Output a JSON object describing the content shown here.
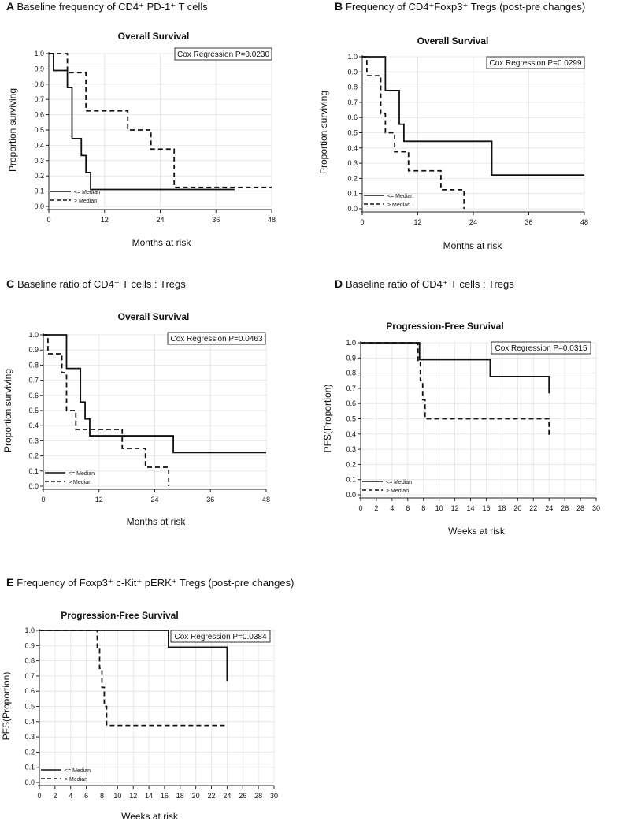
{
  "chart_data": [
    {
      "panel": "A",
      "heading": "Baseline frequency of CD4⁺ PD-1⁺ T cells",
      "type": "line",
      "title": "Overall Survival",
      "xlabel": "Months at risk",
      "ylabel": "Proportion surviving",
      "xlim": [
        0,
        48
      ],
      "ylim": [
        0,
        1
      ],
      "xticks": [
        "0",
        "12",
        "24",
        "36",
        "48"
      ],
      "yticks": [
        "0.0",
        "0.1",
        "0.2",
        "0.3",
        "0.4",
        "0.5",
        "0.6",
        "0.7",
        "0.8",
        "0.9",
        "1.0"
      ],
      "grid": true,
      "stat": "Cox Regression P=0.0230",
      "legend_position": "bottom-left",
      "series": [
        {
          "name": "<= Median",
          "style": "solid",
          "x": [
            0,
            1,
            4,
            5,
            6,
            7,
            8,
            9,
            10,
            40
          ],
          "y": [
            1.0,
            0.889,
            0.778,
            0.444,
            0.444,
            0.333,
            0.222,
            0.111,
            0.111,
            0.111
          ]
        },
        {
          "name": "> Median",
          "style": "dashed",
          "x": [
            0,
            4,
            8,
            17,
            22,
            27,
            48
          ],
          "y": [
            1.0,
            0.875,
            0.625,
            0.5,
            0.375,
            0.125,
            0.125
          ]
        }
      ]
    },
    {
      "panel": "B",
      "heading": "Frequency of CD4⁺Foxp3⁺ Tregs (post-pre changes)",
      "type": "line",
      "title": "Overall Survival",
      "xlabel": "Months at risk",
      "ylabel": "Proportion surviving",
      "xlim": [
        0,
        48
      ],
      "ylim": [
        0,
        1
      ],
      "xticks": [
        "0",
        "12",
        "24",
        "36",
        "48"
      ],
      "yticks": [
        "0.0",
        "0.1",
        "0.2",
        "0.3",
        "0.4",
        "0.5",
        "0.6",
        "0.7",
        "0.8",
        "0.9",
        "1.0"
      ],
      "grid": true,
      "stat": "Cox Regression P=0.0299",
      "legend_position": "bottom-left",
      "series": [
        {
          "name": "<= Median",
          "style": "solid",
          "x": [
            0,
            5,
            8,
            9,
            28,
            48
          ],
          "y": [
            1.0,
            0.778,
            0.556,
            0.444,
            0.222,
            0.222
          ]
        },
        {
          "name": "> Median",
          "style": "dashed",
          "x": [
            0,
            1,
            4,
            5,
            7,
            10,
            17,
            22
          ],
          "y": [
            1.0,
            0.875,
            0.625,
            0.5,
            0.375,
            0.25,
            0.125,
            0.0
          ]
        }
      ]
    },
    {
      "panel": "C",
      "heading": "Baseline ratio of CD4⁺ T cells : Tregs",
      "type": "line",
      "title": "Overall Survival",
      "xlabel": "Months at risk",
      "ylabel": "Proportion surviving",
      "xlim": [
        0,
        48
      ],
      "ylim": [
        0,
        1
      ],
      "xticks": [
        "0",
        "12",
        "24",
        "36",
        "48"
      ],
      "yticks": [
        "0.0",
        "0.1",
        "0.2",
        "0.3",
        "0.4",
        "0.5",
        "0.6",
        "0.7",
        "0.8",
        "0.9",
        "1.0"
      ],
      "grid": true,
      "stat": "Cox Regression P=0.0463",
      "legend_position": "bottom-left",
      "series": [
        {
          "name": "<= Median",
          "style": "solid",
          "x": [
            0,
            5,
            8,
            9,
            10,
            28,
            48
          ],
          "y": [
            1.0,
            0.778,
            0.556,
            0.444,
            0.333,
            0.222,
            0.222
          ]
        },
        {
          "name": "> Median",
          "style": "dashed",
          "x": [
            0,
            1,
            4,
            5,
            7,
            17,
            22,
            27
          ],
          "y": [
            1.0,
            0.875,
            0.75,
            0.5,
            0.375,
            0.25,
            0.125,
            0.0
          ]
        }
      ]
    },
    {
      "panel": "D",
      "heading": "Baseline ratio of CD4⁺ T cells : Tregs",
      "type": "line",
      "title": "Progression-Free Survival",
      "xlabel": "Weeks at risk",
      "ylabel": "PFS(Proportion)",
      "xlim": [
        0,
        30
      ],
      "ylim": [
        0,
        1
      ],
      "xticks": [
        "0",
        "2",
        "4",
        "6",
        "8",
        "10",
        "12",
        "14",
        "16",
        "18",
        "20",
        "22",
        "24",
        "26",
        "28",
        "30"
      ],
      "yticks": [
        "0.0",
        "0.1",
        "0.2",
        "0.3",
        "0.4",
        "0.5",
        "0.6",
        "0.7",
        "0.8",
        "0.9",
        "1.0"
      ],
      "grid": true,
      "stat": "Cox Regression P=0.0315",
      "legend_position": "bottom-left",
      "series": [
        {
          "name": "<= Median",
          "style": "solid",
          "x": [
            0,
            7.5,
            16.5,
            24
          ],
          "y": [
            1.0,
            0.889,
            0.778,
            0.667
          ]
        },
        {
          "name": "> Median",
          "style": "dashed",
          "x": [
            0,
            7.3,
            7.6,
            7.9,
            8.2,
            24
          ],
          "y": [
            1.0,
            0.875,
            0.75,
            0.625,
            0.5,
            0.375
          ]
        }
      ]
    },
    {
      "panel": "E",
      "heading": "Frequency of Foxp3⁺ c-Kit⁺ pERK⁺ Tregs (post-pre changes)",
      "type": "line",
      "title": "Progression-Free Survival",
      "xlabel": "Weeks at risk",
      "ylabel": "PFS(Proportion)",
      "xlim": [
        0,
        30
      ],
      "ylim": [
        0,
        1
      ],
      "xticks": [
        "0",
        "2",
        "4",
        "6",
        "8",
        "10",
        "12",
        "14",
        "16",
        "18",
        "20",
        "22",
        "24",
        "26",
        "28",
        "30"
      ],
      "yticks": [
        "0.0",
        "0.1",
        "0.2",
        "0.3",
        "0.4",
        "0.5",
        "0.6",
        "0.7",
        "0.8",
        "0.9",
        "1.0"
      ],
      "grid": true,
      "stat": "Cox Regression P=0.0384",
      "legend_position": "bottom-left",
      "series": [
        {
          "name": "<= Median",
          "style": "solid",
          "x": [
            0,
            16.5,
            24
          ],
          "y": [
            1.0,
            0.889,
            0.667
          ]
        },
        {
          "name": "> Median",
          "style": "dashed",
          "x": [
            0,
            7.4,
            7.7,
            8.0,
            8.3,
            8.6,
            24
          ],
          "y": [
            1.0,
            0.875,
            0.75,
            0.625,
            0.5,
            0.375,
            0.375
          ]
        }
      ]
    }
  ]
}
